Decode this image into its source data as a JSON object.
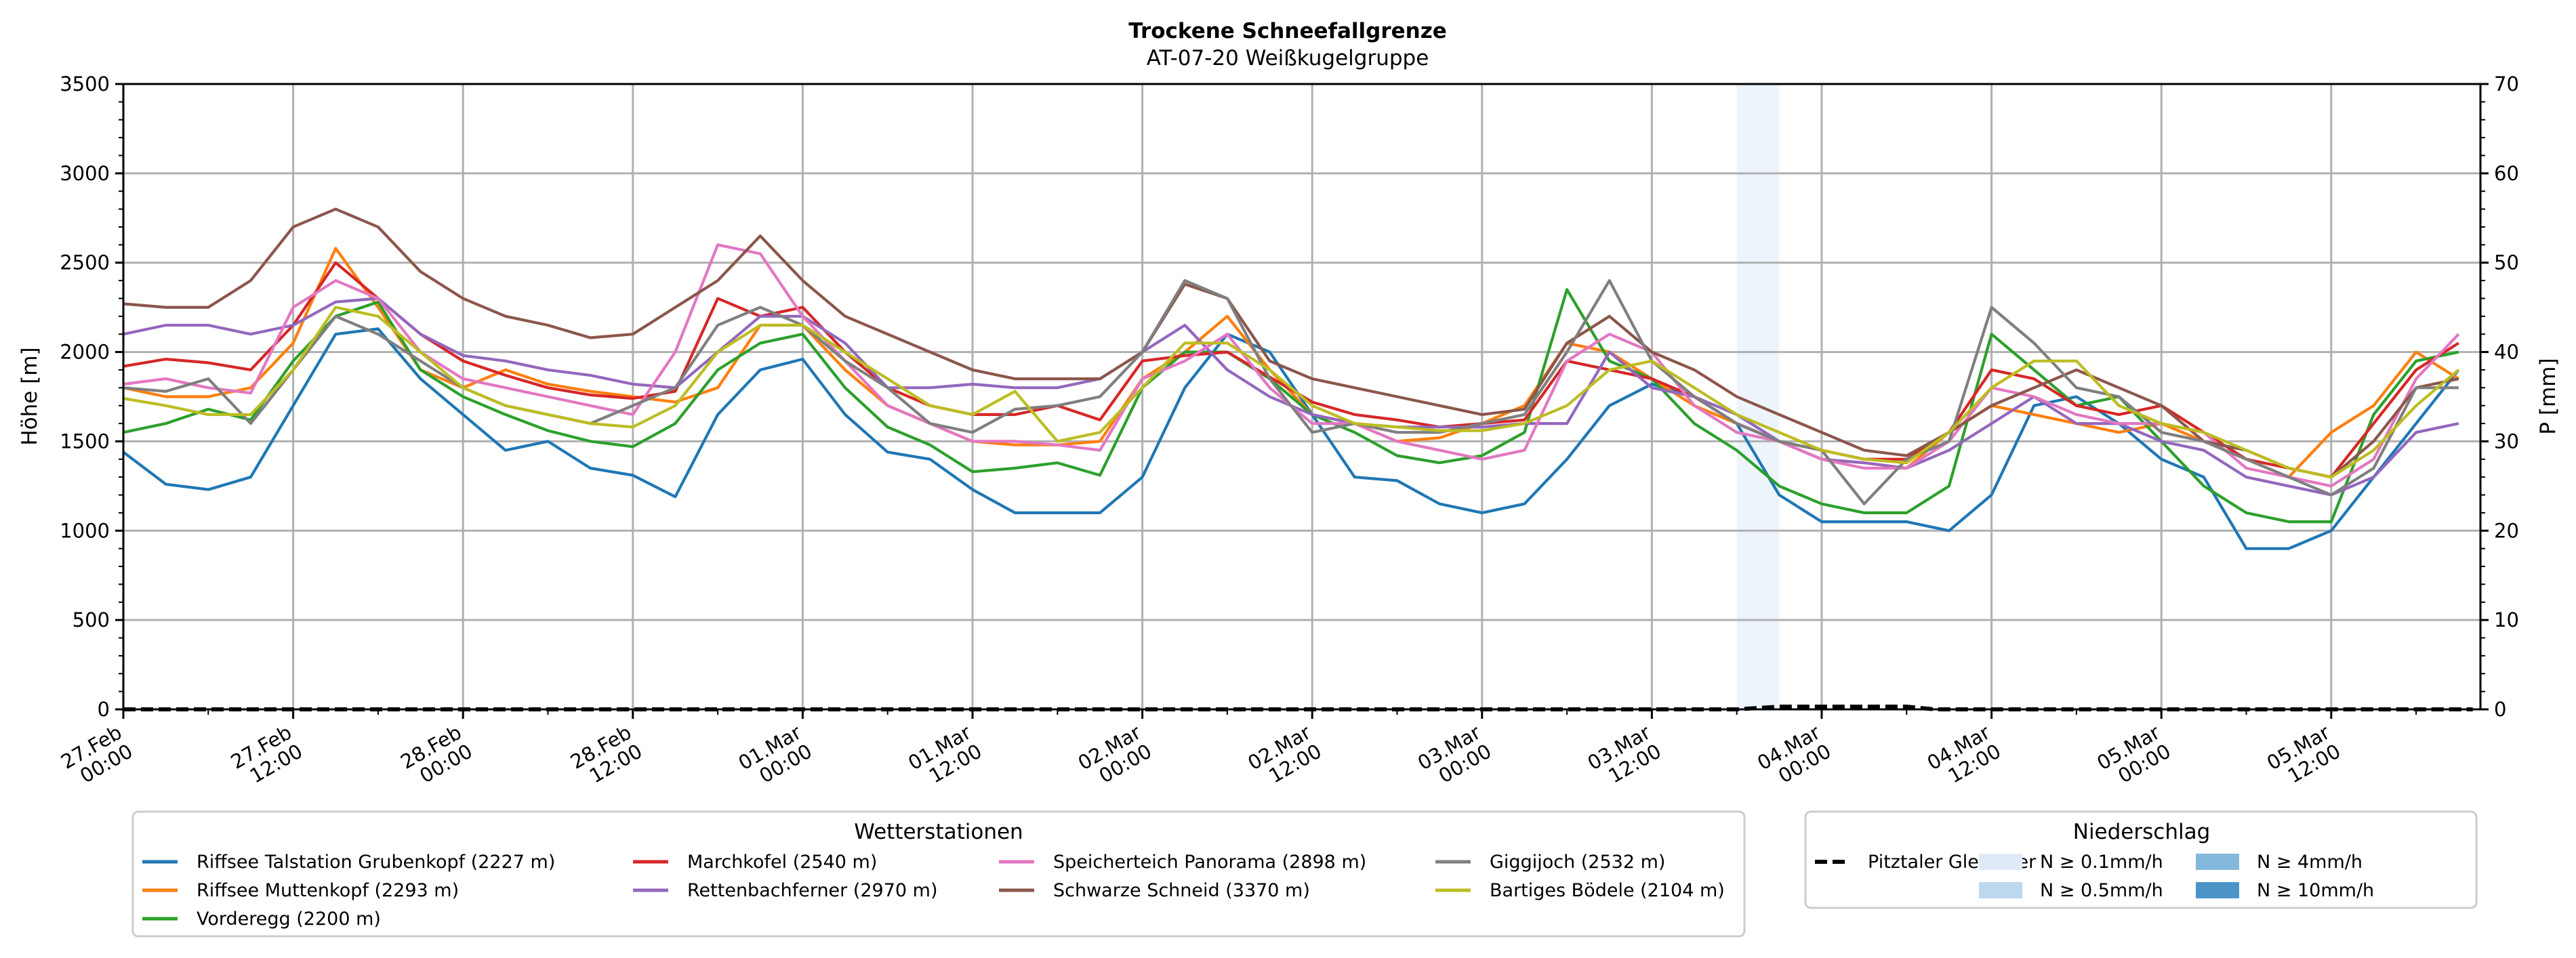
{
  "chart_data": {
    "type": "line",
    "title": "Trockene Schneefallgrenze",
    "subtitle": "AT-07-20 Weißkugelgruppe",
    "ylabel": "Höhe [m]",
    "ylabel_right": "P [mm]",
    "ylim": [
      0,
      3500
    ],
    "ylim_right": [
      0,
      70
    ],
    "yticks": [
      0,
      500,
      1000,
      1500,
      2000,
      2500,
      3000,
      3500
    ],
    "yticks_right": [
      0,
      10,
      20,
      30,
      40,
      50,
      60,
      70
    ],
    "grid": true,
    "x_start": "27.Feb 00:00",
    "x_step_hours": 3,
    "x_range_hours": [
      0,
      166
    ],
    "xticks": [
      {
        "hour": 0,
        "line1": "27.Feb",
        "line2": "00:00"
      },
      {
        "hour": 12,
        "line1": "27.Feb",
        "line2": "12:00"
      },
      {
        "hour": 24,
        "line1": "28.Feb",
        "line2": "00:00"
      },
      {
        "hour": 36,
        "line1": "28.Feb",
        "line2": "12:00"
      },
      {
        "hour": 48,
        "line1": "01.Mar",
        "line2": "00:00"
      },
      {
        "hour": 60,
        "line1": "01.Mar",
        "line2": "12:00"
      },
      {
        "hour": 72,
        "line1": "02.Mar",
        "line2": "00:00"
      },
      {
        "hour": 84,
        "line1": "02.Mar",
        "line2": "12:00"
      },
      {
        "hour": 96,
        "line1": "03.Mar",
        "line2": "00:00"
      },
      {
        "hour": 108,
        "line1": "03.Mar",
        "line2": "12:00"
      },
      {
        "hour": 120,
        "line1": "04.Mar",
        "line2": "00:00"
      },
      {
        "hour": 132,
        "line1": "04.Mar",
        "line2": "12:00"
      },
      {
        "hour": 144,
        "line1": "05.Mar",
        "line2": "00:00"
      },
      {
        "hour": 156,
        "line1": "05.Mar",
        "line2": "12:00"
      }
    ],
    "series": [
      {
        "name": "Riffsee Talstation Grubenkopf (2227 m)",
        "color": "#1f77b4",
        "values": [
          1440,
          1260,
          1230,
          1300,
          1700,
          2100,
          2130,
          1850,
          1650,
          1450,
          1500,
          1350,
          1310,
          1190,
          1650,
          1900,
          1960,
          1650,
          1440,
          1400,
          1230,
          1100,
          1100,
          1100,
          1300,
          1800,
          2100,
          2000,
          1650,
          1300,
          1280,
          1150,
          1100,
          1150,
          1400,
          1700,
          1820,
          1750,
          1600,
          1200,
          1050,
          1050,
          1050,
          1000,
          1200,
          1700,
          1750,
          1600,
          1400,
          1300,
          900,
          900,
          1000,
          1300,
          1600,
          1900
        ]
      },
      {
        "name": "Riffsee Muttenkopf (2293 m)",
        "color": "#ff7f0e",
        "values": [
          1800,
          1750,
          1750,
          1800,
          2050,
          2580,
          2250,
          1900,
          1800,
          1900,
          1820,
          1780,
          1750,
          1720,
          1800,
          2150,
          2150,
          1900,
          1700,
          1600,
          1500,
          1480,
          1480,
          1500,
          1850,
          2000,
          2200,
          1900,
          1650,
          1600,
          1500,
          1520,
          1600,
          1700,
          2050,
          2000,
          1850,
          1700,
          1600,
          1500,
          1400,
          1380,
          1350,
          1550,
          1700,
          1650,
          1600,
          1550,
          1600,
          1500,
          1400,
          1300,
          1550,
          1700,
          2000,
          1850
        ]
      },
      {
        "name": "Vorderegg (2200 m)",
        "color": "#2ca02c",
        "values": [
          1550,
          1600,
          1680,
          1620,
          1950,
          2200,
          2280,
          1900,
          1750,
          1650,
          1560,
          1500,
          1470,
          1600,
          1900,
          2050,
          2100,
          1800,
          1580,
          1480,
          1330,
          1350,
          1380,
          1310,
          1800,
          2000,
          2000,
          1850,
          1650,
          1550,
          1420,
          1380,
          1420,
          1550,
          2350,
          1950,
          1850,
          1600,
          1450,
          1250,
          1150,
          1100,
          1100,
          1250,
          2100,
          1900,
          1700,
          1750,
          1500,
          1250,
          1100,
          1050,
          1050,
          1650,
          1950,
          2000
        ]
      },
      {
        "name": "Marchkofel (2540 m)",
        "color": "#d62728",
        "values": [
          1920,
          1960,
          1940,
          1900,
          2150,
          2500,
          2300,
          2100,
          1950,
          1870,
          1800,
          1760,
          1740,
          1780,
          2300,
          2200,
          2250,
          2000,
          1800,
          1700,
          1650,
          1650,
          1700,
          1620,
          1950,
          1980,
          2000,
          1860,
          1720,
          1650,
          1620,
          1580,
          1600,
          1620,
          1950,
          1900,
          1850,
          1750,
          1600,
          1500,
          1450,
          1400,
          1400,
          1550,
          1900,
          1850,
          1700,
          1650,
          1700,
          1550,
          1400,
          1350,
          1300,
          1600,
          1900,
          2050
        ]
      },
      {
        "name": "Rettenbachferner (2970 m)",
        "color": "#9467bd",
        "values": [
          2100,
          2150,
          2150,
          2100,
          2150,
          2280,
          2300,
          2100,
          1980,
          1950,
          1900,
          1870,
          1820,
          1800,
          2000,
          2200,
          2200,
          2050,
          1800,
          1800,
          1820,
          1800,
          1800,
          1850,
          2000,
          2150,
          1900,
          1750,
          1650,
          1600,
          1580,
          1580,
          1580,
          1600,
          1600,
          2000,
          1800,
          1750,
          1650,
          1500,
          1400,
          1380,
          1350,
          1450,
          1600,
          1750,
          1600,
          1600,
          1500,
          1450,
          1300,
          1250,
          1200,
          1300,
          1550,
          1600
        ]
      },
      {
        "name": "Speicherteich Panorama (2898 m)",
        "color": "#e377c2",
        "values": [
          1820,
          1850,
          1800,
          1770,
          2250,
          2400,
          2300,
          2000,
          1850,
          1800,
          1750,
          1700,
          1650,
          2000,
          2600,
          2550,
          2200,
          1950,
          1700,
          1600,
          1500,
          1500,
          1480,
          1450,
          1850,
          1950,
          2100,
          1800,
          1600,
          1600,
          1500,
          1450,
          1400,
          1450,
          1950,
          2100,
          2000,
          1700,
          1550,
          1500,
          1400,
          1350,
          1350,
          1500,
          1800,
          1750,
          1650,
          1600,
          1600,
          1550,
          1350,
          1300,
          1250,
          1400,
          1850,
          2100
        ]
      },
      {
        "name": "Schwarze Schneid (3370 m)",
        "color": "#8c564b",
        "values": [
          2270,
          2250,
          2250,
          2400,
          2700,
          2800,
          2700,
          2450,
          2300,
          2200,
          2150,
          2080,
          2100,
          2250,
          2400,
          2650,
          2400,
          2200,
          2100,
          2000,
          1900,
          1850,
          1850,
          1850,
          2000,
          2380,
          2300,
          1950,
          1850,
          1800,
          1750,
          1700,
          1650,
          1680,
          2050,
          2200,
          2000,
          1900,
          1750,
          1650,
          1550,
          1450,
          1420,
          1550,
          1700,
          1800,
          1900,
          1800,
          1700,
          1500,
          1450,
          1350,
          1300,
          1500,
          1800,
          1850
        ]
      },
      {
        "name": "Giggijoch (2532 m)",
        "color": "#7f7f7f",
        "values": [
          1800,
          1780,
          1850,
          1600,
          1900,
          2200,
          2100,
          1950,
          1800,
          1700,
          1650,
          1600,
          1700,
          1800,
          2150,
          2250,
          2150,
          1950,
          1800,
          1600,
          1550,
          1680,
          1700,
          1750,
          2000,
          2400,
          2300,
          1850,
          1550,
          1600,
          1550,
          1550,
          1600,
          1650,
          2000,
          2400,
          1950,
          1750,
          1600,
          1500,
          1450,
          1150,
          1400,
          1500,
          2250,
          2050,
          1800,
          1750,
          1550,
          1500,
          1400,
          1300,
          1200,
          1350,
          1800,
          1800
        ]
      },
      {
        "name": "Bartiges Bödele (2104 m)",
        "color": "#bcbd22",
        "values": [
          1740,
          1700,
          1650,
          1650,
          1900,
          2250,
          2200,
          2000,
          1800,
          1700,
          1650,
          1600,
          1580,
          1700,
          2000,
          2150,
          2150,
          2000,
          1850,
          1700,
          1650,
          1780,
          1500,
          1550,
          1800,
          2050,
          2050,
          1900,
          1700,
          1600,
          1580,
          1560,
          1560,
          1600,
          1700,
          1900,
          1950,
          1800,
          1650,
          1550,
          1450,
          1400,
          1380,
          1550,
          1800,
          1950,
          1950,
          1700,
          1600,
          1550,
          1450,
          1350,
          1300,
          1450,
          1700,
          1900
        ]
      }
    ],
    "precipitation_series": {
      "name": "Pitztaler Gletscher",
      "style": "dashed",
      "color": "#000000",
      "points": [
        {
          "hour": 0,
          "mm": 0
        },
        {
          "hour": 114,
          "mm": 0
        },
        {
          "hour": 117,
          "mm": 0.3
        },
        {
          "hour": 126,
          "mm": 0.3
        },
        {
          "hour": 128,
          "mm": 0
        },
        {
          "hour": 166,
          "mm": 0
        }
      ]
    },
    "precipitation_bands": [
      {
        "start_hour": 114,
        "end_hour": 117,
        "level": "N ≥ 0.1mm/h",
        "color": "#deebf7"
      }
    ],
    "legend_stations": {
      "title": "Wetterstationen",
      "placement": "bottom-left",
      "columns": 4
    },
    "legend_precip": {
      "title": "Niederschlag",
      "placement": "bottom-right",
      "line_label": "Pitztaler Gletscher",
      "levels": [
        {
          "label": "N ≥ 0.1mm/h",
          "color": "#deebf7"
        },
        {
          "label": "N ≥ 0.5mm/h",
          "color": "#bdd7ee"
        },
        {
          "label": "N ≥ 4mm/h",
          "color": "#83b8da"
        },
        {
          "label": "N ≥ 10mm/h",
          "color": "#4a94c7"
        }
      ]
    }
  }
}
